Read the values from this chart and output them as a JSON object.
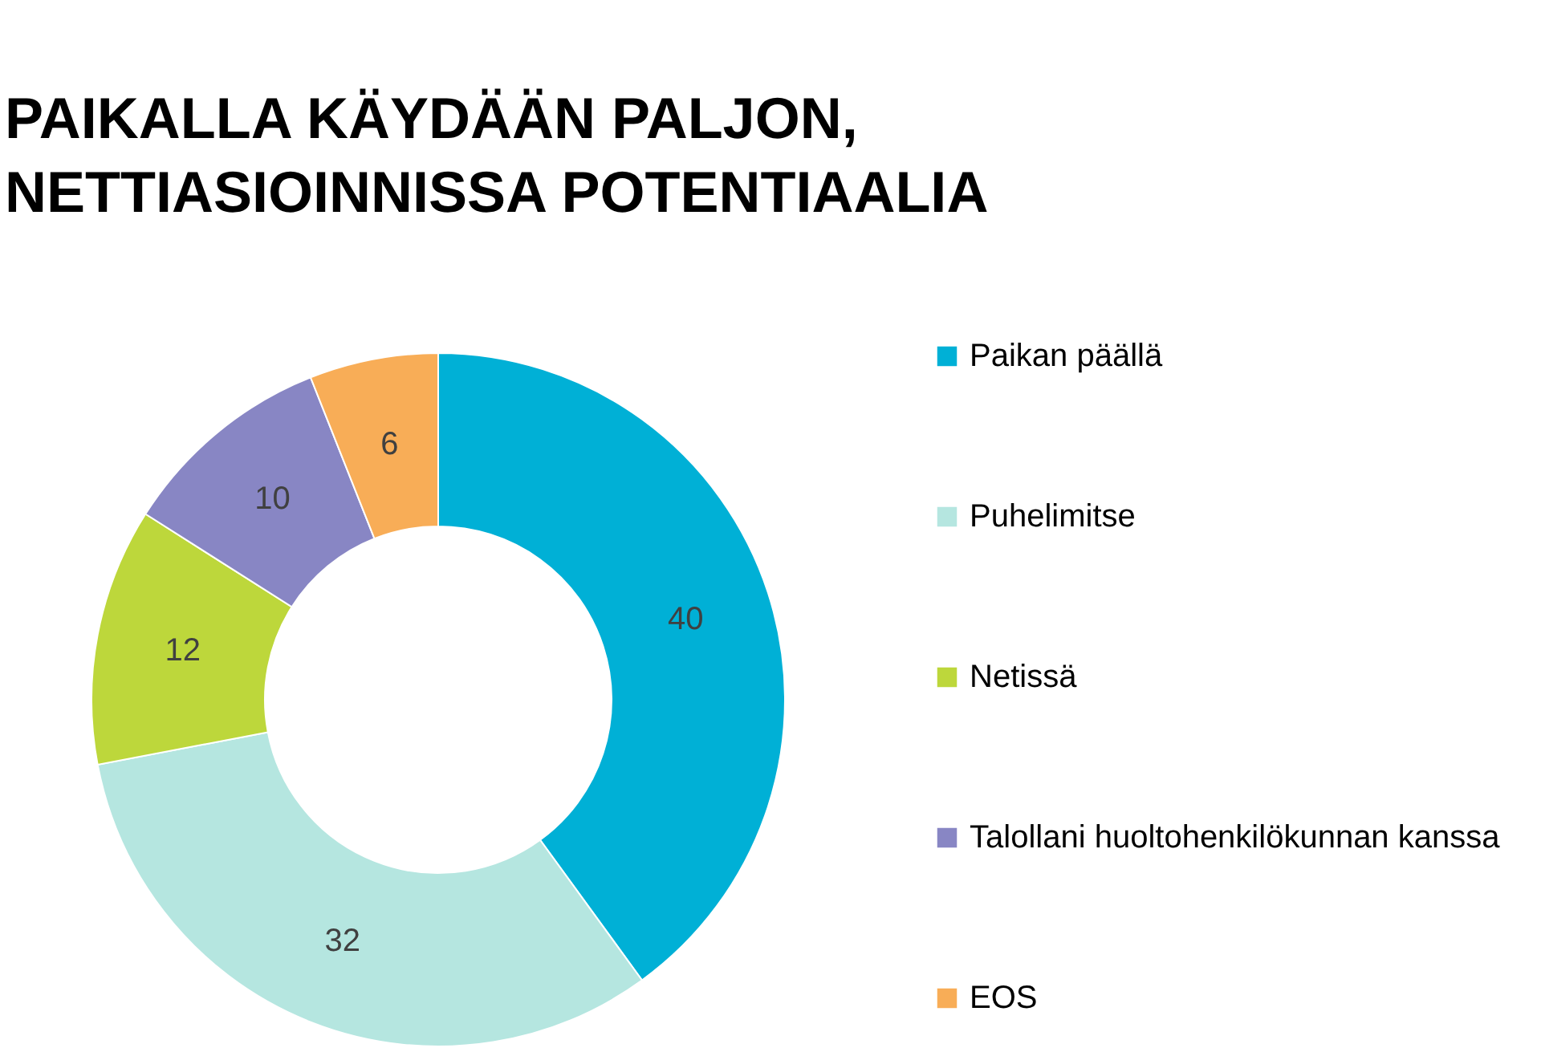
{
  "chart_data": {
    "type": "donut",
    "title": "PAIKALLA KÄYDÄÄN PALJON,\nNETTIASIOINNISSA POTENTIAALIA",
    "categories": [
      "Paikan päällä",
      "Puhelimitse",
      "Netissä",
      "Talollani huoltohenkilökunnan kanssa",
      "EOS"
    ],
    "values": [
      40,
      32,
      12,
      10,
      6
    ],
    "colors": [
      "#00b0d6",
      "#b5e6e0",
      "#bdd73b",
      "#8886c4",
      "#f8ad57"
    ],
    "data_labels": true,
    "legend": "right"
  }
}
